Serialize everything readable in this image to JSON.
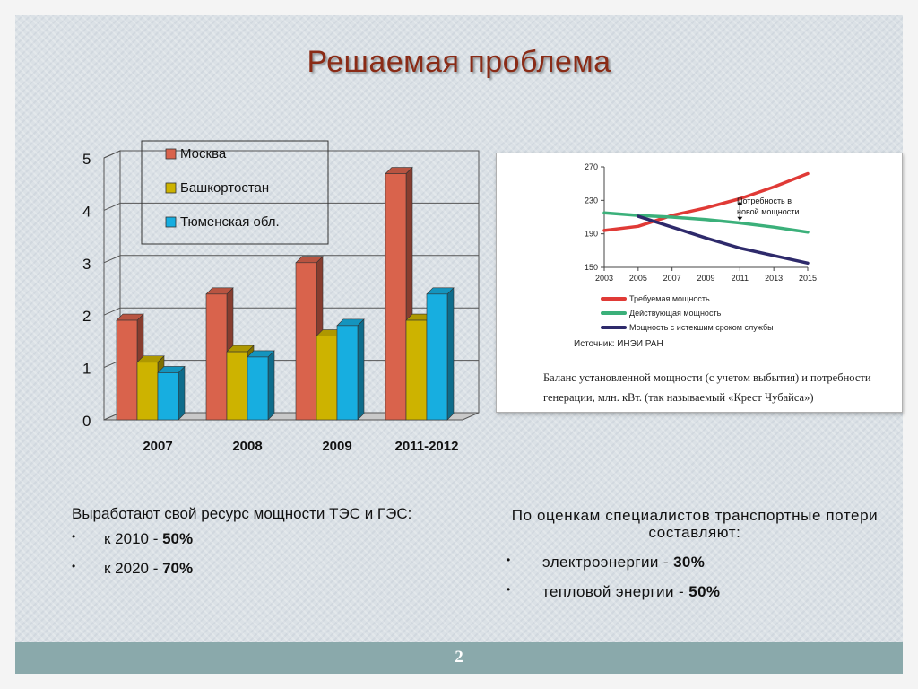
{
  "slide": {
    "title": "Решаемая проблема",
    "page_number": "2"
  },
  "colors": {
    "background": "#dbe1e6",
    "title": "#8a2b16",
    "footer": "#8aa9ab",
    "moscow": "#d9634c",
    "bashkortostan": "#cdb300",
    "tyumen": "#17aee0",
    "required": "#e03a36",
    "operating": "#3bb07a",
    "expired": "#2e2a6b"
  },
  "chart_data": [
    {
      "type": "bar",
      "categories": [
        "2007",
        "2008",
        "2009",
        "2011-2012"
      ],
      "series": [
        {
          "name": "Москва",
          "values": [
            1.9,
            2.4,
            3.0,
            4.7
          ]
        },
        {
          "name": "Башкортостан",
          "values": [
            1.1,
            1.3,
            1.6,
            1.9
          ]
        },
        {
          "name": "Тюменская обл.",
          "values": [
            0.9,
            1.2,
            1.8,
            2.4
          ]
        }
      ],
      "ylim": [
        0,
        5
      ],
      "yticks": [
        "0",
        "1",
        "2",
        "3",
        "4",
        "5"
      ],
      "legend_position": "top-left",
      "grid": true
    },
    {
      "type": "line",
      "x": [
        2003,
        2005,
        2007,
        2009,
        2011,
        2013,
        2015
      ],
      "xticks": [
        "2003",
        "2005",
        "2007",
        "2009",
        "2011",
        "2013",
        "2015"
      ],
      "series": [
        {
          "name": "Требуемая мощность",
          "x": [
            2003,
            2005,
            2007,
            2009,
            2011,
            2013,
            2015
          ],
          "values": [
            194,
            199,
            212,
            221,
            232,
            246,
            262
          ]
        },
        {
          "name": "Действующая мощность",
          "x": [
            2003,
            2005,
            2007,
            2009,
            2011,
            2013,
            2015
          ],
          "values": [
            215,
            212,
            210,
            207,
            203,
            198,
            192
          ]
        },
        {
          "name": "Мощность с истекшим сроком службы",
          "x": [
            2005,
            2007,
            2009,
            2011,
            2013,
            2015
          ],
          "values": [
            211,
            198,
            185,
            173,
            164,
            155
          ]
        }
      ],
      "ylim": [
        150,
        270
      ],
      "yticks": [
        "150",
        "190",
        "230",
        "270"
      ],
      "annotation": "Потребность в новой мощности",
      "source": "Источник: ИНЭИ РАН",
      "caption": "Баланс установленной мощности (с учетом выбытия) и потребности генерации, млн. кВт. (так называемый «Крест Чубайса»)"
    }
  ],
  "left_block": {
    "heading": "Выработают свой ресурс мощности ТЭС и ГЭС:",
    "items": [
      {
        "prefix": "к 2010 - ",
        "value": "50%"
      },
      {
        "prefix": "к 2020 - ",
        "value": "70%"
      }
    ]
  },
  "right_block": {
    "heading": "По оценкам специалистов транспортные потери составляют:",
    "items": [
      {
        "prefix": "электроэнергии - ",
        "value": "30%"
      },
      {
        "prefix": "тепловой энергии - ",
        "value": "50%"
      }
    ]
  },
  "bullet_symbol": "•"
}
